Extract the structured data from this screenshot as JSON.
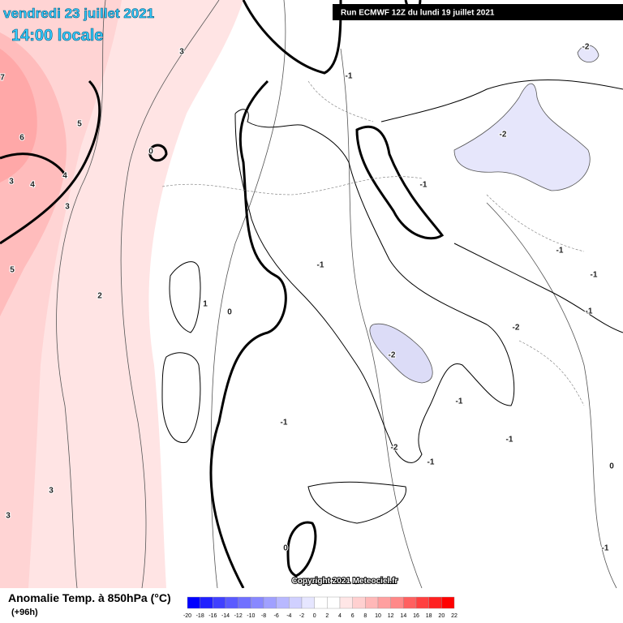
{
  "header": {
    "date": "vendredi 23 juillet 2021",
    "time": "14:00 locale",
    "run": "Run ECMWF 12Z du lundi 19 juillet 2021"
  },
  "map": {
    "copyright": "Copyright 2021 Meteociel.fr",
    "contour_labels": [
      "3",
      "-1",
      "-2",
      "7",
      "5",
      "6",
      "0",
      "-2",
      "3",
      "4",
      "4",
      "3",
      "-1",
      "5",
      "-1",
      "-1",
      "-1",
      "2",
      "1",
      "0",
      "-1",
      "-2",
      "-2",
      "-1",
      "-1",
      "-1",
      "-2",
      "-1",
      "0",
      "3",
      "3",
      "0",
      "-1"
    ]
  },
  "legend": {
    "title": "Anomalie Temp. à 850hPa (°C)",
    "lead": "(+96h)",
    "scale": [
      -20,
      -18,
      -16,
      -14,
      -12,
      -10,
      -8,
      -6,
      -4,
      -2,
      0,
      2,
      4,
      6,
      8,
      10,
      12,
      14,
      16,
      18,
      20,
      22
    ],
    "colors": [
      "#0000ff",
      "#2020ff",
      "#4040ff",
      "#5a5aff",
      "#7070ff",
      "#8888ff",
      "#a0a0ff",
      "#b8b8ff",
      "#d0d0ff",
      "#e6e6ff",
      "#ffffff",
      "#ffffff",
      "#ffe6e6",
      "#ffd0d0",
      "#ffb8b8",
      "#ffa0a0",
      "#ff8888",
      "#ff6060",
      "#ff4040",
      "#ff2020",
      "#ff0000"
    ]
  }
}
